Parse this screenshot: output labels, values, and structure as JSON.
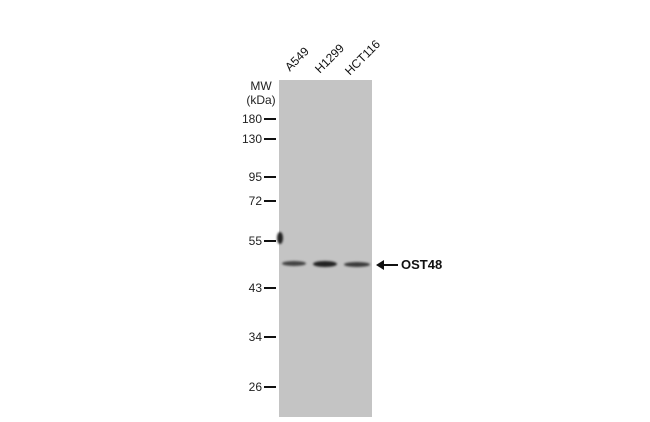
{
  "lanes": [
    "A549",
    "H1299",
    "HCT116"
  ],
  "mw_title": [
    "MW",
    "(kDa)"
  ],
  "markers": [
    "180",
    "130",
    "95",
    "72",
    "55",
    "43",
    "34",
    "26"
  ],
  "target_label": "OST48",
  "colors": {
    "membrane": "#c4c4c4",
    "band": "#222222"
  }
}
